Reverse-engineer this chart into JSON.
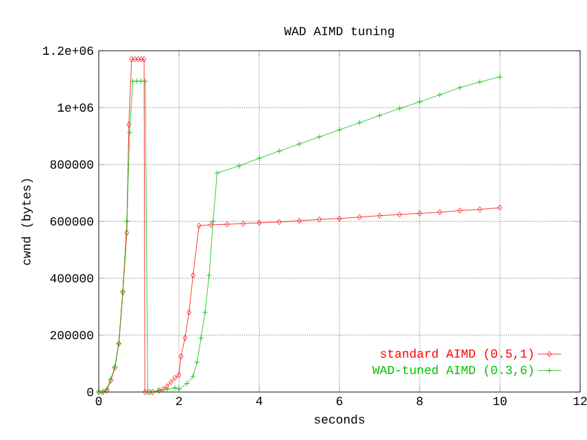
{
  "chart_data": {
    "type": "line",
    "title": "WAD AIMD tuning",
    "xlabel": "seconds",
    "ylabel": "cwnd (bytes)",
    "xlim": [
      0,
      12
    ],
    "xticks": [
      0,
      2,
      4,
      6,
      8,
      10,
      12
    ],
    "ylim": [
      0,
      1200000
    ],
    "yticks": [
      0,
      200000,
      400000,
      600000,
      800000,
      {
        "value": 1000000,
        "label": "1e+06"
      },
      {
        "value": 1200000,
        "label": "1.2e+06"
      }
    ],
    "grid": true,
    "legend": "bottom right",
    "line_style": "solid",
    "series": [
      {
        "name": "standard AIMD (0.5,1)",
        "color": "#ff0000",
        "marker": "diamond",
        "x": [
          0,
          0.1,
          0.2,
          0.3,
          0.4,
          0.5,
          0.6,
          0.7,
          0.75,
          0.82,
          0.9,
          0.98,
          1.06,
          1.13,
          1.15,
          1.25,
          1.35,
          1.5,
          1.6,
          1.7,
          1.8,
          1.9,
          2.0,
          2.05,
          2.15,
          2.25,
          2.35,
          2.5,
          2.8,
          3.2,
          3.6,
          4.0,
          4.5,
          5.0,
          5.5,
          6.0,
          6.5,
          7.0,
          7.5,
          8.0,
          8.5,
          9.0,
          9.5,
          10.0
        ],
        "values": [
          0,
          0,
          5000,
          40000,
          85000,
          170000,
          350000,
          560000,
          940000,
          1170000,
          1170000,
          1170000,
          1170000,
          1170000,
          0,
          0,
          0,
          5000,
          10000,
          20000,
          35000,
          50000,
          60000,
          125000,
          190000,
          280000,
          410000,
          585000,
          588000,
          590000,
          592000,
          595000,
          598000,
          602000,
          607000,
          610000,
          615000,
          620000,
          624000,
          628000,
          632000,
          638000,
          642000,
          648000
        ]
      },
      {
        "name": "WAD-tuned AIMD (0.3,6)",
        "color": "#00c000",
        "marker": "cross",
        "x": [
          0,
          0.1,
          0.2,
          0.3,
          0.4,
          0.5,
          0.6,
          0.7,
          0.77,
          0.85,
          0.95,
          1.05,
          1.16,
          1.22,
          1.3,
          1.5,
          1.7,
          1.9,
          2.0,
          2.2,
          2.35,
          2.45,
          2.55,
          2.65,
          2.75,
          2.85,
          2.95,
          3.5,
          4.0,
          4.5,
          5.0,
          5.5,
          6.0,
          6.5,
          7.0,
          7.5,
          8.0,
          8.5,
          9.0,
          9.5,
          10.0
        ],
        "values": [
          0,
          0,
          10000,
          45000,
          88000,
          170000,
          355000,
          600000,
          912000,
          1093000,
          1093000,
          1093000,
          1093000,
          0,
          0,
          5000,
          10000,
          15000,
          10000,
          30000,
          55000,
          105000,
          190000,
          280000,
          410000,
          600000,
          770000,
          795000,
          822000,
          847000,
          872000,
          897000,
          922000,
          947000,
          972000,
          997000,
          1020000,
          1045000,
          1070000,
          1090000,
          1108000
        ]
      }
    ]
  }
}
